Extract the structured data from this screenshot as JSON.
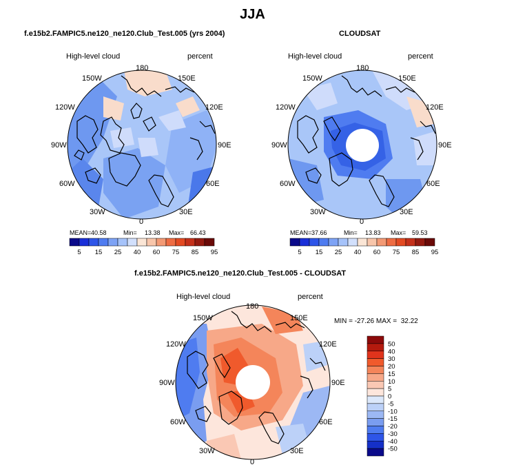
{
  "season": "JJA",
  "panels": [
    {
      "title": "f.e15b2.FAMPIC5.ne120_ne120.Club_Test.005 (yrs 2004)",
      "variable": "High-level cloud",
      "units": "percent",
      "stats": {
        "mean_label": "MEAN=",
        "mean": "40.58",
        "min_label": "Min=",
        "min": "13.38",
        "max_label": "Max=",
        "max": "66.43"
      },
      "colorbar_labels": [
        "5",
        "15",
        "25",
        "40",
        "60",
        "75",
        "85",
        "95"
      ],
      "colorbar_colors": [
        "#0a0a8a",
        "#1a2fd8",
        "#2e55e8",
        "#4f7cf0",
        "#7ea3f5",
        "#a6c3fa",
        "#d2e0fc",
        "#fbe6d6",
        "#f8c6ab",
        "#f39a75",
        "#ee6c43",
        "#e34a22",
        "#c4301a",
        "#941a10",
        "#6a0a08"
      ]
    },
    {
      "title": "CLOUDSAT",
      "variable": "High-level cloud",
      "units": "percent",
      "stats": {
        "mean_label": "MEAN=",
        "mean": "37.66",
        "min_label": "Min=",
        "min": "13.83",
        "max_label": "Max=",
        "max": "59.53"
      },
      "colorbar_labels": [
        "5",
        "15",
        "25",
        "40",
        "60",
        "75",
        "85",
        "95"
      ],
      "colorbar_colors": [
        "#0a0a8a",
        "#1a2fd8",
        "#2e55e8",
        "#4f7cf0",
        "#7ea3f5",
        "#a6c3fa",
        "#d2e0fc",
        "#fbe6d6",
        "#f8c6ab",
        "#f39a75",
        "#ee6c43",
        "#e34a22",
        "#c4301a",
        "#941a10",
        "#6a0a08"
      ]
    },
    {
      "title": "f.e15b2.FAMPIC5.ne120_ne120.Club_Test.005 - CLOUDSAT",
      "variable": "High-level cloud",
      "units": "percent",
      "range_text": "MIN = -27.26 MAX =  32.22",
      "colorbar_labels": [
        "50",
        "40",
        "30",
        "20",
        "15",
        "10",
        "5",
        "0",
        "-5",
        "-10",
        "-15",
        "-20",
        "-30",
        "-40",
        "-50"
      ],
      "colorbar_colors": [
        "#8c0a0a",
        "#b41a0e",
        "#e0341c",
        "#f05a2c",
        "#f4855a",
        "#f7a888",
        "#fac8b4",
        "#fde6dc",
        "#dce8fb",
        "#bcd1f8",
        "#9cb8f4",
        "#7a9df0",
        "#4f7cf0",
        "#2e55e8",
        "#1530c8",
        "#0a0a8a"
      ]
    }
  ],
  "longitude_labels": [
    "180",
    "150E",
    "120E",
    "90E",
    "60E",
    "30E",
    "0",
    "30W",
    "60W",
    "90W",
    "120W",
    "150W"
  ]
}
